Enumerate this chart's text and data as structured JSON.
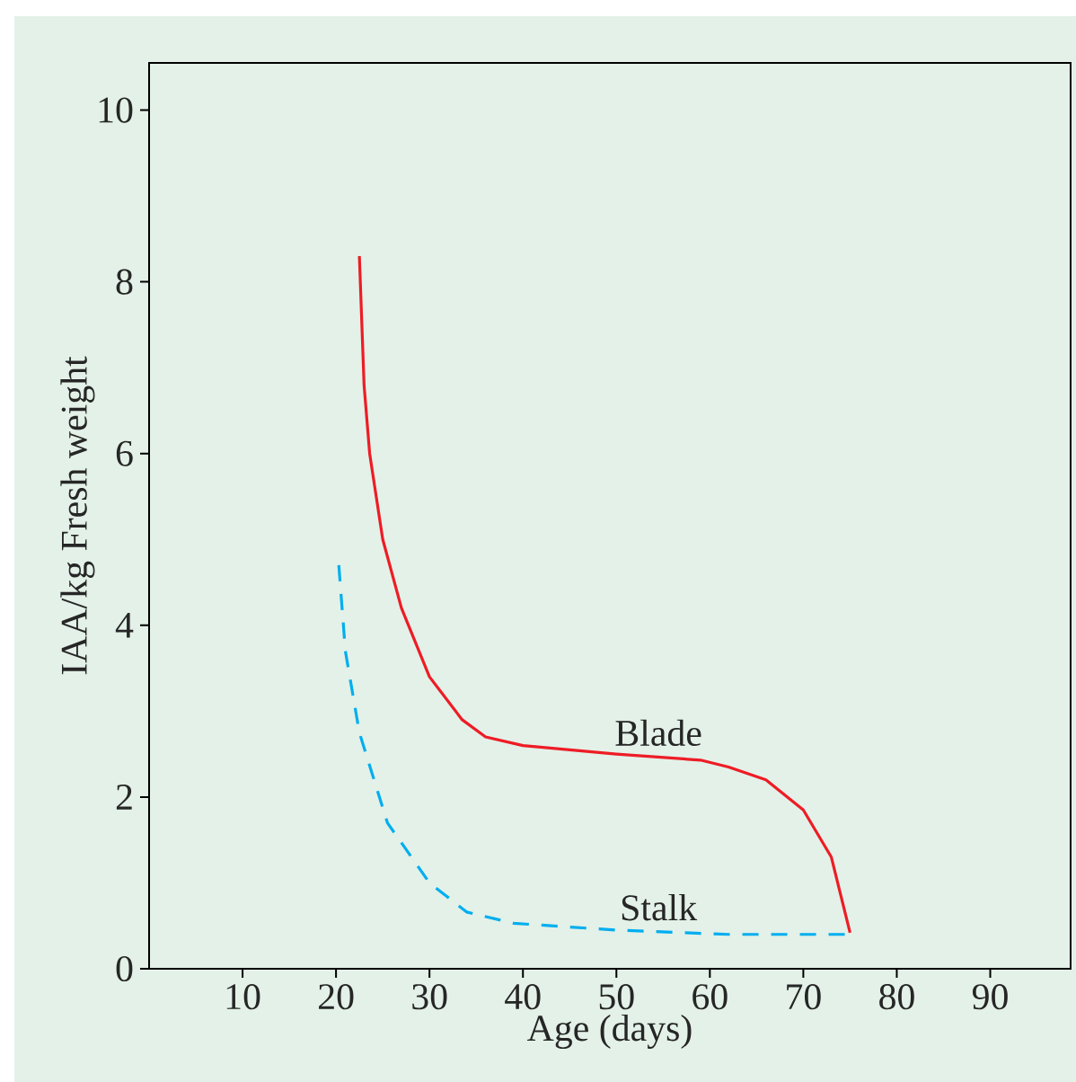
{
  "chart_data": {
    "type": "line",
    "xlabel": "Age (days)",
    "ylabel": "IAA/kg Fresh weight",
    "xlim": [
      0,
      98.6
    ],
    "ylim": [
      0,
      10.55
    ],
    "xticks": [
      10,
      20,
      30,
      40,
      50,
      60,
      70,
      80,
      90
    ],
    "yticks": [
      0,
      2,
      4,
      6,
      8,
      10
    ],
    "grid": false,
    "legend": false,
    "marker": "none",
    "series": [
      {
        "name": "Blade",
        "color": "#ee1c25",
        "line_style": "solid",
        "x": [
          22.5,
          23,
          23.6,
          25,
          27,
          30,
          33.5,
          36,
          40,
          50,
          59,
          62,
          66,
          70,
          73,
          75
        ],
        "values": [
          8.3,
          6.8,
          6.0,
          5.0,
          4.2,
          3.4,
          2.9,
          2.7,
          2.6,
          2.5,
          2.43,
          2.35,
          2.2,
          1.85,
          1.3,
          0.42
        ]
      },
      {
        "name": "Stalk",
        "color": "#00aeef",
        "line_style": "dashed",
        "x": [
          20.3,
          21,
          22.5,
          25.5,
          30,
          34,
          39,
          50,
          62,
          75
        ],
        "values": [
          4.7,
          3.7,
          2.75,
          1.7,
          1.0,
          0.66,
          0.53,
          0.45,
          0.4,
          0.4
        ]
      }
    ]
  }
}
